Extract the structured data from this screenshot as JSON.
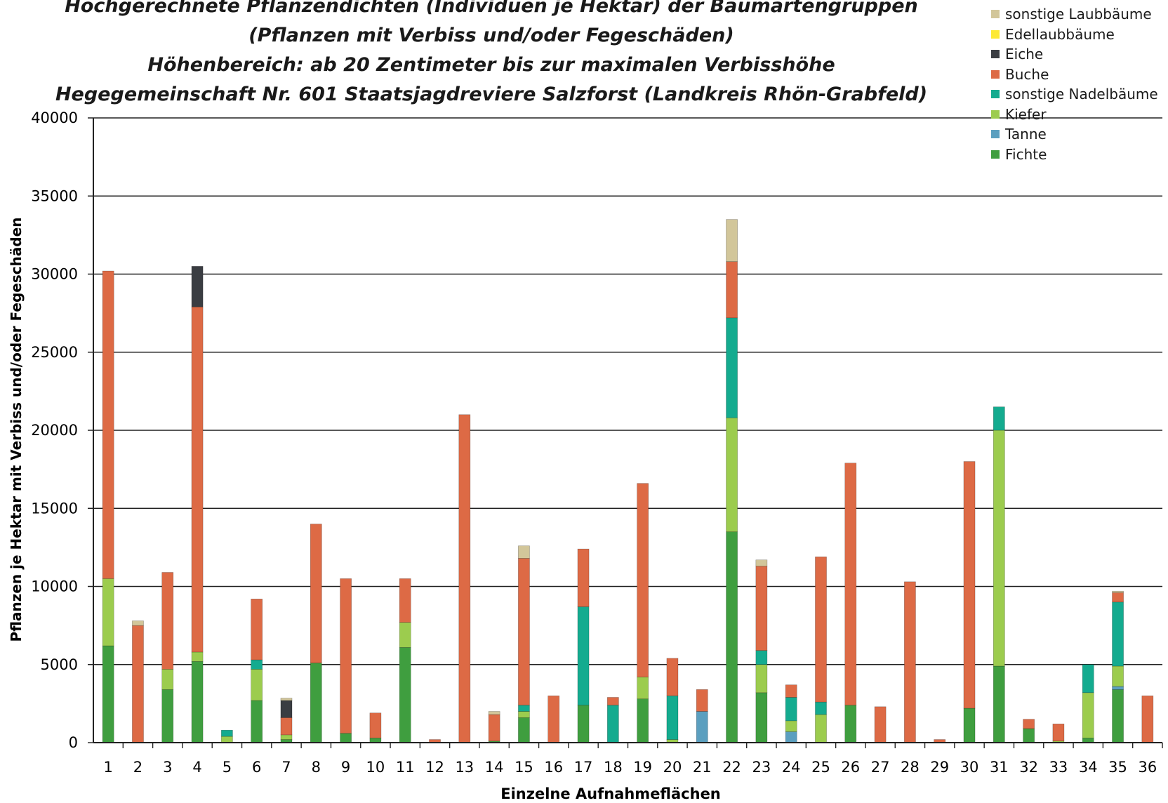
{
  "chart_data": {
    "type": "bar",
    "stacked": true,
    "title_lines": [
      "Hochgerechnete Pflanzendichten (Individuen je Hektar) der Baumartengruppen",
      "(Pflanzen mit Verbiss und/oder Fegeschäden)",
      "Höhenbereich: ab 20 Zentimeter bis zur maximalen Verbisshöhe",
      "Hegegemeinschaft Nr. 601 Staatsjagdreviere Salzforst (Landkreis Rhön-Grabfeld)"
    ],
    "xlabel": "Einzelne Aufnahmeflächen",
    "ylabel": "Pflanzen je Hektar mit Verbiss und/oder Fegeschäden",
    "ylim": [
      0,
      40000
    ],
    "yticks": [
      "0",
      "5000",
      "10000",
      "15000",
      "20000",
      "25000",
      "30000",
      "35000",
      "40000"
    ],
    "grid": true,
    "legend_position": "top-right",
    "categories": [
      "1",
      "2",
      "3",
      "4",
      "5",
      "6",
      "7",
      "8",
      "9",
      "10",
      "11",
      "12",
      "13",
      "14",
      "15",
      "16",
      "17",
      "18",
      "19",
      "20",
      "21",
      "22",
      "23",
      "24",
      "25",
      "26",
      "27",
      "28",
      "29",
      "30",
      "31",
      "32",
      "33",
      "34",
      "35",
      "36"
    ],
    "series": [
      {
        "name": "Fichte",
        "color": "#3f9e3f",
        "values": [
          6200,
          0,
          3400,
          5200,
          0,
          2700,
          200,
          5100,
          600,
          300,
          6100,
          0,
          0,
          100,
          1600,
          0,
          2400,
          0,
          2800,
          0,
          0,
          13500,
          3200,
          0,
          0,
          2400,
          0,
          0,
          0,
          2200,
          4900,
          900,
          0,
          300,
          3400,
          0
        ]
      },
      {
        "name": "Tanne",
        "color": "#5b9fbf",
        "values": [
          0,
          0,
          0,
          0,
          0,
          0,
          0,
          0,
          0,
          0,
          0,
          0,
          0,
          0,
          0,
          0,
          0,
          0,
          0,
          0,
          2000,
          0,
          0,
          700,
          0,
          0,
          0,
          0,
          0,
          0,
          0,
          0,
          0,
          0,
          200,
          0
        ]
      },
      {
        "name": "Kiefer",
        "color": "#9ccc4e",
        "values": [
          4300,
          0,
          1300,
          600,
          400,
          2000,
          300,
          0,
          0,
          0,
          1600,
          0,
          0,
          0,
          400,
          0,
          0,
          0,
          1400,
          200,
          0,
          7300,
          1800,
          700,
          1800,
          0,
          0,
          0,
          0,
          0,
          15100,
          0,
          100,
          2900,
          1300,
          0
        ]
      },
      {
        "name": "sonstige Nadelbäume",
        "color": "#14ab8f",
        "values": [
          0,
          0,
          0,
          0,
          400,
          600,
          0,
          0,
          0,
          0,
          0,
          0,
          0,
          0,
          400,
          0,
          6300,
          2400,
          0,
          2800,
          0,
          6400,
          900,
          1500,
          800,
          0,
          0,
          0,
          0,
          0,
          1500,
          0,
          0,
          1800,
          4100,
          0
        ]
      },
      {
        "name": "Buche",
        "color": "#dd6a45",
        "values": [
          19700,
          7500,
          6200,
          22100,
          0,
          3900,
          1100,
          8900,
          9900,
          1600,
          2800,
          200,
          21000,
          1700,
          9400,
          3000,
          3700,
          500,
          12400,
          2400,
          1400,
          3600,
          5400,
          800,
          9300,
          15500,
          2300,
          10300,
          200,
          15800,
          0,
          600,
          1100,
          0,
          600,
          3000
        ]
      },
      {
        "name": "Eiche",
        "color": "#3a3d42",
        "values": [
          0,
          0,
          0,
          2600,
          0,
          0,
          1100,
          0,
          0,
          0,
          0,
          0,
          0,
          0,
          0,
          0,
          0,
          0,
          0,
          0,
          0,
          0,
          0,
          0,
          0,
          0,
          0,
          0,
          0,
          0,
          0,
          0,
          0,
          0,
          0,
          0
        ]
      },
      {
        "name": "Edellaubbäume",
        "color": "#fde933",
        "values": [
          0,
          0,
          0,
          0,
          0,
          0,
          0,
          0,
          0,
          0,
          0,
          0,
          0,
          0,
          0,
          0,
          0,
          0,
          0,
          0,
          0,
          0,
          0,
          0,
          0,
          0,
          0,
          0,
          0,
          0,
          0,
          0,
          0,
          0,
          0,
          0
        ]
      },
      {
        "name": "sonstige Laubbäume",
        "color": "#d2c69a",
        "values": [
          0,
          300,
          0,
          0,
          0,
          0,
          150,
          0,
          0,
          0,
          0,
          0,
          0,
          200,
          800,
          0,
          0,
          0,
          0,
          0,
          0,
          2700,
          400,
          0,
          0,
          0,
          0,
          0,
          0,
          0,
          0,
          0,
          0,
          0,
          100,
          0
        ]
      }
    ]
  }
}
